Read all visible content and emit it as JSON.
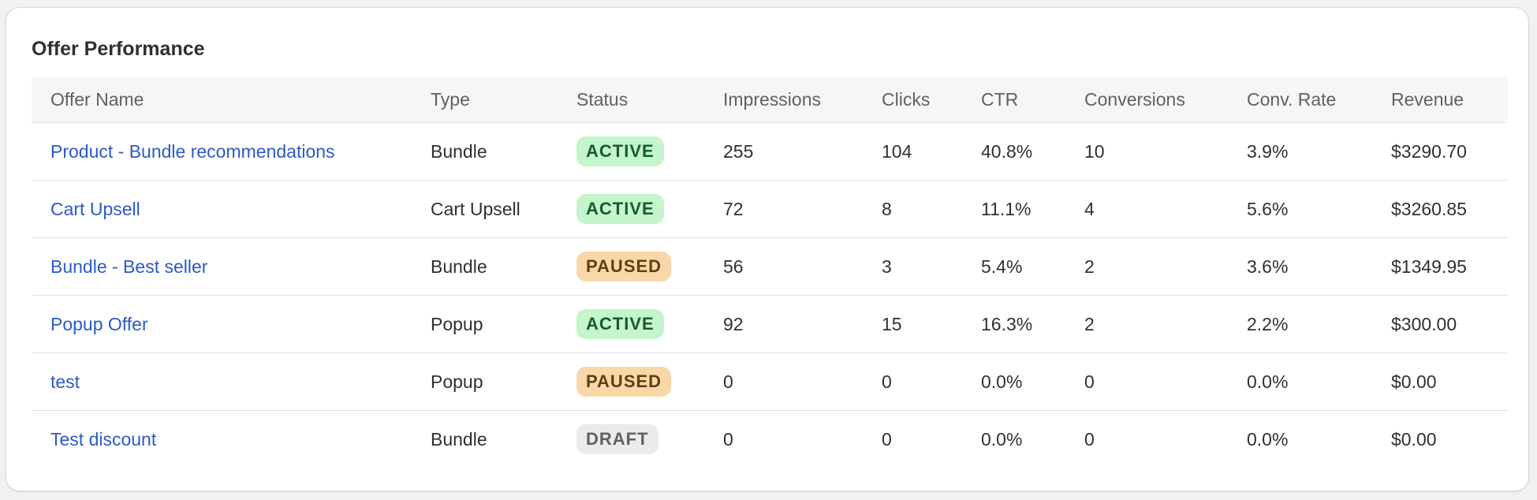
{
  "card": {
    "title": "Offer Performance"
  },
  "table": {
    "headers": {
      "offer_name": "Offer Name",
      "type": "Type",
      "status": "Status",
      "impressions": "Impressions",
      "clicks": "Clicks",
      "ctr": "CTR",
      "conversions": "Conversions",
      "conv_rate": "Conv. Rate",
      "revenue": "Revenue"
    },
    "rows": [
      {
        "offer_name": "Product - Bundle recommendations",
        "type": "Bundle",
        "status": "ACTIVE",
        "status_kind": "active",
        "impressions": "255",
        "clicks": "104",
        "ctr": "40.8%",
        "conversions": "10",
        "conv_rate": "3.9%",
        "revenue": "$3290.70"
      },
      {
        "offer_name": "Cart Upsell",
        "type": "Cart Upsell",
        "status": "ACTIVE",
        "status_kind": "active",
        "impressions": "72",
        "clicks": "8",
        "ctr": "11.1%",
        "conversions": "4",
        "conv_rate": "5.6%",
        "revenue": "$3260.85"
      },
      {
        "offer_name": "Bundle - Best seller",
        "type": "Bundle",
        "status": "PAUSED",
        "status_kind": "paused",
        "impressions": "56",
        "clicks": "3",
        "ctr": "5.4%",
        "conversions": "2",
        "conv_rate": "3.6%",
        "revenue": "$1349.95"
      },
      {
        "offer_name": "Popup Offer",
        "type": "Popup",
        "status": "ACTIVE",
        "status_kind": "active",
        "impressions": "92",
        "clicks": "15",
        "ctr": "16.3%",
        "conversions": "2",
        "conv_rate": "2.2%",
        "revenue": "$300.00"
      },
      {
        "offer_name": "test",
        "type": "Popup",
        "status": "PAUSED",
        "status_kind": "paused",
        "impressions": "0",
        "clicks": "0",
        "ctr": "0.0%",
        "conversions": "0",
        "conv_rate": "0.0%",
        "revenue": "$0.00"
      },
      {
        "offer_name": "Test discount",
        "type": "Bundle",
        "status": "DRAFT",
        "status_kind": "draft",
        "impressions": "0",
        "clicks": "0",
        "ctr": "0.0%",
        "conversions": "0",
        "conv_rate": "0.0%",
        "revenue": "$0.00"
      }
    ]
  },
  "colors": {
    "link": "#2c5ac8",
    "active_bg": "#c4f5cc",
    "active_text": "#175c2c",
    "paused_bg": "#fad7a8",
    "paused_text": "#5e3f10",
    "draft_bg": "#ebebeb",
    "draft_text": "#616161"
  }
}
